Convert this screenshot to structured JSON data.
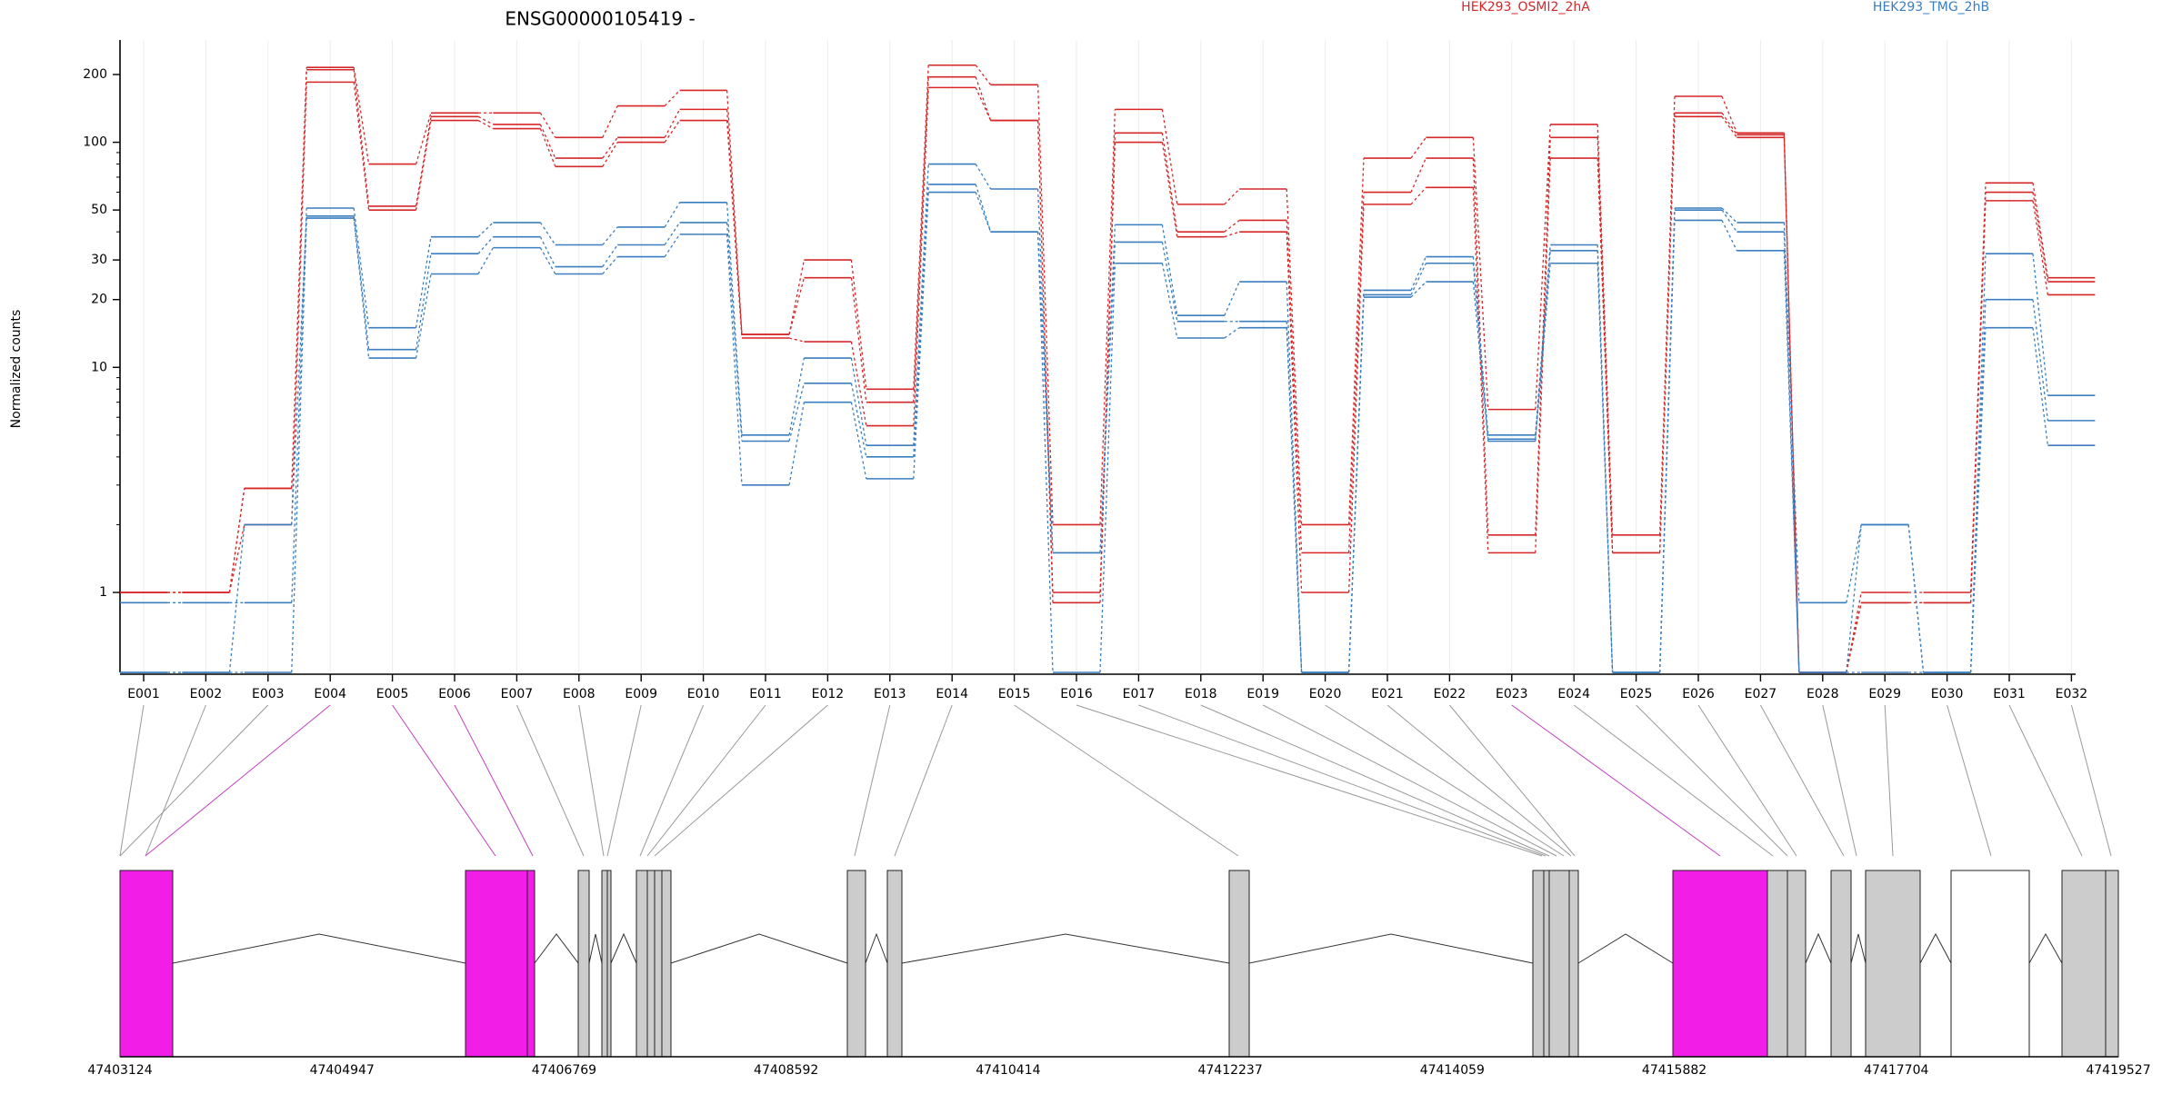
{
  "chart_data": {
    "type": "line",
    "title": "ENSG00000105419 -",
    "ylabel": "Normalized counts",
    "xlabel": "",
    "yscale": "log",
    "ylim": [
      0.4,
      280
    ],
    "yticks": [
      1,
      10,
      20,
      30,
      50,
      100,
      200
    ],
    "ytick_labels": [
      "1",
      "10",
      "20",
      "30",
      "50",
      "100",
      "200"
    ],
    "grid": "vertical, light",
    "legend": "top",
    "categories": [
      "E001",
      "E002",
      "E003",
      "E004",
      "E005",
      "E006",
      "E007",
      "E008",
      "E009",
      "E010",
      "E011",
      "E012",
      "E013",
      "E014",
      "E015",
      "E016",
      "E017",
      "E018",
      "E019",
      "E020",
      "E021",
      "E022",
      "E023",
      "E024",
      "E025",
      "E026",
      "E027",
      "E028",
      "E029",
      "E030",
      "E031",
      "E032"
    ],
    "conditions": [
      {
        "name": "HEK293_OSMI2_2hA",
        "color": "#d62728"
      },
      {
        "name": "HEK293_TMG_2hB",
        "color": "#3a7ebf"
      }
    ],
    "series": [
      {
        "condition": 0,
        "values": [
          1.0,
          1.0,
          2.9,
          215,
          80,
          135,
          135,
          105,
          145,
          170,
          14,
          30,
          8,
          220,
          180,
          2.0,
          140,
          53,
          62,
          2.0,
          85,
          105,
          6.5,
          120,
          1.8,
          160,
          110,
          0.4,
          1.0,
          1.0,
          66,
          25
        ]
      },
      {
        "condition": 0,
        "values": [
          1.0,
          1.0,
          2.9,
          210,
          52,
          130,
          120,
          85,
          105,
          140,
          14,
          25,
          7.0,
          195,
          125,
          1.0,
          110,
          40,
          45,
          1.5,
          60,
          85,
          1.8,
          105,
          1.5,
          135,
          108,
          0.4,
          0.9,
          0.9,
          60,
          24
        ]
      },
      {
        "condition": 0,
        "values": [
          1.0,
          1.0,
          2.0,
          185,
          50,
          125,
          115,
          78,
          100,
          125,
          13.5,
          13,
          5.5,
          175,
          125,
          0.9,
          100,
          38,
          40,
          1.0,
          53,
          63,
          1.5,
          85,
          1.5,
          130,
          105,
          0.4,
          0.9,
          0.9,
          55,
          21
        ]
      },
      {
        "condition": 1,
        "values": [
          0.9,
          0.9,
          0.9,
          51,
          15,
          38,
          44,
          35,
          42,
          54,
          5.0,
          11,
          4.5,
          80,
          62,
          1.5,
          43,
          17,
          24,
          0.4,
          22,
          31,
          5.0,
          35,
          0.4,
          51,
          44,
          0.9,
          2.0,
          0.4,
          32,
          7.5
        ]
      },
      {
        "condition": 1,
        "values": [
          0.4,
          0.4,
          2.0,
          47,
          12,
          32,
          38,
          28,
          35,
          44,
          4.7,
          8.5,
          4.0,
          65,
          40,
          1.5,
          36,
          16,
          16,
          0.4,
          21,
          29,
          4.8,
          33,
          0.4,
          50,
          40,
          0.4,
          2.0,
          0.4,
          20,
          5.8
        ]
      },
      {
        "condition": 1,
        "values": [
          0.4,
          0.4,
          0.4,
          46,
          11,
          26,
          34,
          26,
          31,
          39,
          3.0,
          7.0,
          3.2,
          60,
          40,
          0.4,
          29,
          13.5,
          15,
          0.4,
          20.5,
          24,
          4.7,
          29,
          0.4,
          45,
          33,
          0.4,
          0.4,
          0.4,
          15,
          4.5
        ]
      }
    ],
    "genomic_ticks": [
      "47403124",
      "47404947",
      "47406769",
      "47408592",
      "47410414",
      "47412237",
      "47414059",
      "47415882",
      "47417704",
      "47419527"
    ]
  },
  "colors": {
    "highlight_exon": "#f21ee8",
    "exon": "#cccccc",
    "connector": "#999999",
    "highlight_connector": "#c23fc0"
  }
}
